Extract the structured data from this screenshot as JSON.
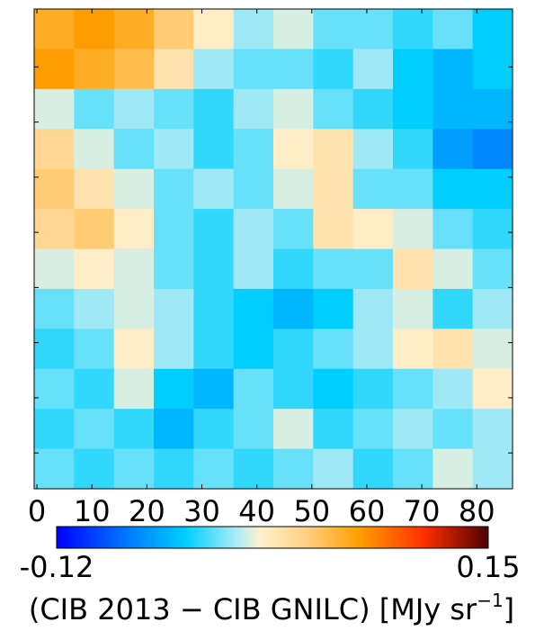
{
  "chart_data": {
    "type": "heatmap",
    "xlim": [
      -0.5,
      86.5
    ],
    "ylim": [
      86.5,
      -0.5
    ],
    "xticks": [
      0,
      10,
      20,
      30,
      40,
      50,
      60,
      70,
      80
    ],
    "yticks": [
      10,
      20,
      30,
      40,
      50,
      60,
      70,
      80
    ],
    "xbins": [
      -0.5,
      6.75,
      14,
      21.25,
      28.5,
      35.75,
      43,
      50.25,
      57.5,
      64.75,
      72,
      79.25,
      86.5
    ],
    "ybins": [
      -0.5,
      6.75,
      14,
      21.25,
      28.5,
      35.75,
      43,
      50.25,
      57.5,
      64.75,
      72,
      79.25,
      86.5
    ],
    "values": [
      [
        0.06,
        0.07,
        0.06,
        0.04,
        0.01,
        -0.01,
        0.0,
        -0.02,
        -0.02,
        -0.03,
        -0.02,
        -0.04
      ],
      [
        0.07,
        0.06,
        0.05,
        0.02,
        -0.01,
        -0.02,
        -0.02,
        -0.03,
        -0.01,
        -0.04,
        -0.05,
        -0.04
      ],
      [
        0.0,
        -0.02,
        -0.01,
        -0.02,
        -0.03,
        -0.01,
        0.0,
        -0.02,
        -0.03,
        -0.04,
        -0.05,
        -0.05
      ],
      [
        0.03,
        0.0,
        -0.02,
        -0.01,
        -0.03,
        -0.02,
        0.01,
        0.02,
        -0.01,
        -0.03,
        -0.06,
        -0.07
      ],
      [
        0.04,
        0.02,
        0.0,
        -0.02,
        -0.01,
        -0.02,
        0.0,
        0.02,
        -0.02,
        -0.02,
        -0.04,
        -0.04
      ],
      [
        0.03,
        0.04,
        0.01,
        -0.02,
        -0.03,
        -0.01,
        -0.02,
        0.02,
        0.01,
        0.0,
        -0.02,
        -0.03
      ],
      [
        0.0,
        0.01,
        0.0,
        -0.02,
        -0.03,
        -0.01,
        -0.03,
        -0.02,
        -0.02,
        0.02,
        0.0,
        -0.02
      ],
      [
        -0.02,
        -0.01,
        0.0,
        -0.01,
        -0.03,
        -0.04,
        -0.05,
        -0.04,
        -0.01,
        0.0,
        -0.03,
        -0.01
      ],
      [
        -0.03,
        -0.02,
        0.01,
        -0.01,
        -0.03,
        -0.04,
        -0.03,
        -0.02,
        -0.01,
        0.01,
        0.02,
        0.0
      ],
      [
        -0.02,
        -0.03,
        0.0,
        -0.04,
        -0.05,
        -0.02,
        -0.03,
        -0.04,
        -0.03,
        -0.02,
        -0.01,
        0.01
      ],
      [
        -0.03,
        -0.02,
        -0.03,
        -0.05,
        -0.03,
        -0.02,
        0.0,
        -0.03,
        -0.02,
        -0.01,
        -0.02,
        -0.01
      ],
      [
        -0.02,
        -0.03,
        -0.02,
        -0.03,
        -0.02,
        -0.03,
        -0.02,
        -0.01,
        -0.03,
        -0.02,
        0.0,
        -0.01
      ]
    ],
    "colorbar_lim": [
      -0.12,
      0.15
    ],
    "colorbar_ticks": [
      -0.12,
      0.15
    ],
    "colormap": [
      "#0000ff",
      "#0070ff",
      "#00d0ff",
      "#b0ecf4",
      "#fff0d0",
      "#ffd080",
      "#ffa000",
      "#ff3000",
      "#500000"
    ],
    "colormap_stops": [
      0,
      0.15,
      0.3,
      0.42,
      0.47,
      0.58,
      0.7,
      0.85,
      1
    ],
    "colorbar_label": [
      "(CIB 2013 − CIB GNILC) [MJy sr",
      "−1",
      "]"
    ]
  }
}
